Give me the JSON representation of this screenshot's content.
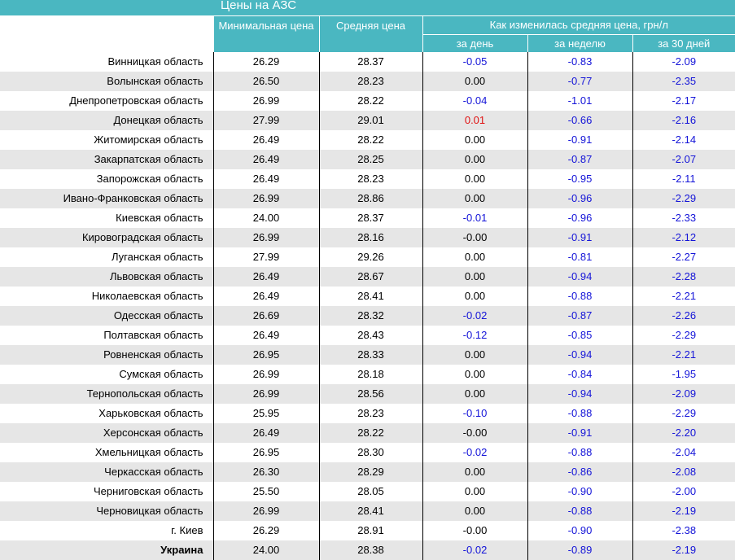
{
  "title": "Цены на АЗС",
  "headers": {
    "min_price": "Минимальная цена",
    "avg_price": "Средняя цена",
    "change_group": "Как изменилась средняя цена, грн/л",
    "day": "за день",
    "week": "за неделю",
    "month": "за 30 дней"
  },
  "colors": {
    "header_bg": "#4ab7c1",
    "negative": "#1414d8",
    "positive": "#e01010",
    "stripe": "#e6e6e6"
  },
  "rows": [
    {
      "region": "Винницкая область",
      "min": "26.29",
      "avg": "28.37",
      "day": "-0.05",
      "week": "-0.83",
      "month": "-2.09"
    },
    {
      "region": "Волынская область",
      "min": "26.50",
      "avg": "28.23",
      "day": "0.00",
      "week": "-0.77",
      "month": "-2.35"
    },
    {
      "region": "Днепропетровская область",
      "min": "26.99",
      "avg": "28.22",
      "day": "-0.04",
      "week": "-1.01",
      "month": "-2.17"
    },
    {
      "region": "Донецкая область",
      "min": "27.99",
      "avg": "29.01",
      "day": "0.01",
      "week": "-0.66",
      "month": "-2.16"
    },
    {
      "region": "Житомирская область",
      "min": "26.49",
      "avg": "28.22",
      "day": "0.00",
      "week": "-0.91",
      "month": "-2.14"
    },
    {
      "region": "Закарпатская область",
      "min": "26.49",
      "avg": "28.25",
      "day": "0.00",
      "week": "-0.87",
      "month": "-2.07"
    },
    {
      "region": "Запорожская область",
      "min": "26.49",
      "avg": "28.23",
      "day": "0.00",
      "week": "-0.95",
      "month": "-2.11"
    },
    {
      "region": "Ивано-Франковская область",
      "min": "26.99",
      "avg": "28.86",
      "day": "0.00",
      "week": "-0.96",
      "month": "-2.29"
    },
    {
      "region": "Киевская область",
      "min": "24.00",
      "avg": "28.37",
      "day": "-0.01",
      "week": "-0.96",
      "month": "-2.33"
    },
    {
      "region": "Кировоградская область",
      "min": "26.99",
      "avg": "28.16",
      "day": "-0.00",
      "week": "-0.91",
      "month": "-2.12"
    },
    {
      "region": "Луганская область",
      "min": "27.99",
      "avg": "29.26",
      "day": "0.00",
      "week": "-0.81",
      "month": "-2.27"
    },
    {
      "region": "Львовская область",
      "min": "26.49",
      "avg": "28.67",
      "day": "0.00",
      "week": "-0.94",
      "month": "-2.28"
    },
    {
      "region": "Николаевская область",
      "min": "26.49",
      "avg": "28.41",
      "day": "0.00",
      "week": "-0.88",
      "month": "-2.21"
    },
    {
      "region": "Одесская область",
      "min": "26.69",
      "avg": "28.32",
      "day": "-0.02",
      "week": "-0.87",
      "month": "-2.26"
    },
    {
      "region": "Полтавская область",
      "min": "26.49",
      "avg": "28.43",
      "day": "-0.12",
      "week": "-0.85",
      "month": "-2.29"
    },
    {
      "region": "Ровненская область",
      "min": "26.95",
      "avg": "28.33",
      "day": "0.00",
      "week": "-0.94",
      "month": "-2.21"
    },
    {
      "region": "Сумская область",
      "min": "26.99",
      "avg": "28.18",
      "day": "0.00",
      "week": "-0.84",
      "month": "-1.95"
    },
    {
      "region": "Тернопольская область",
      "min": "26.99",
      "avg": "28.56",
      "day": "0.00",
      "week": "-0.94",
      "month": "-2.09"
    },
    {
      "region": "Харьковская область",
      "min": "25.95",
      "avg": "28.23",
      "day": "-0.10",
      "week": "-0.88",
      "month": "-2.29"
    },
    {
      "region": "Херсонская область",
      "min": "26.49",
      "avg": "28.22",
      "day": "-0.00",
      "week": "-0.91",
      "month": "-2.20"
    },
    {
      "region": "Хмельницкая область",
      "min": "26.95",
      "avg": "28.30",
      "day": "-0.02",
      "week": "-0.88",
      "month": "-2.04"
    },
    {
      "region": "Черкасская область",
      "min": "26.30",
      "avg": "28.29",
      "day": "0.00",
      "week": "-0.86",
      "month": "-2.08"
    },
    {
      "region": "Черниговская область",
      "min": "25.50",
      "avg": "28.05",
      "day": "0.00",
      "week": "-0.90",
      "month": "-2.00"
    },
    {
      "region": "Черновицкая область",
      "min": "26.99",
      "avg": "28.41",
      "day": "0.00",
      "week": "-0.88",
      "month": "-2.19"
    },
    {
      "region": "г. Киев",
      "min": "26.29",
      "avg": "28.91",
      "day": "-0.00",
      "week": "-0.90",
      "month": "-2.38"
    },
    {
      "region": "Украина",
      "min": "24.00",
      "avg": "28.38",
      "day": "-0.02",
      "week": "-0.89",
      "month": "-2.19"
    }
  ]
}
